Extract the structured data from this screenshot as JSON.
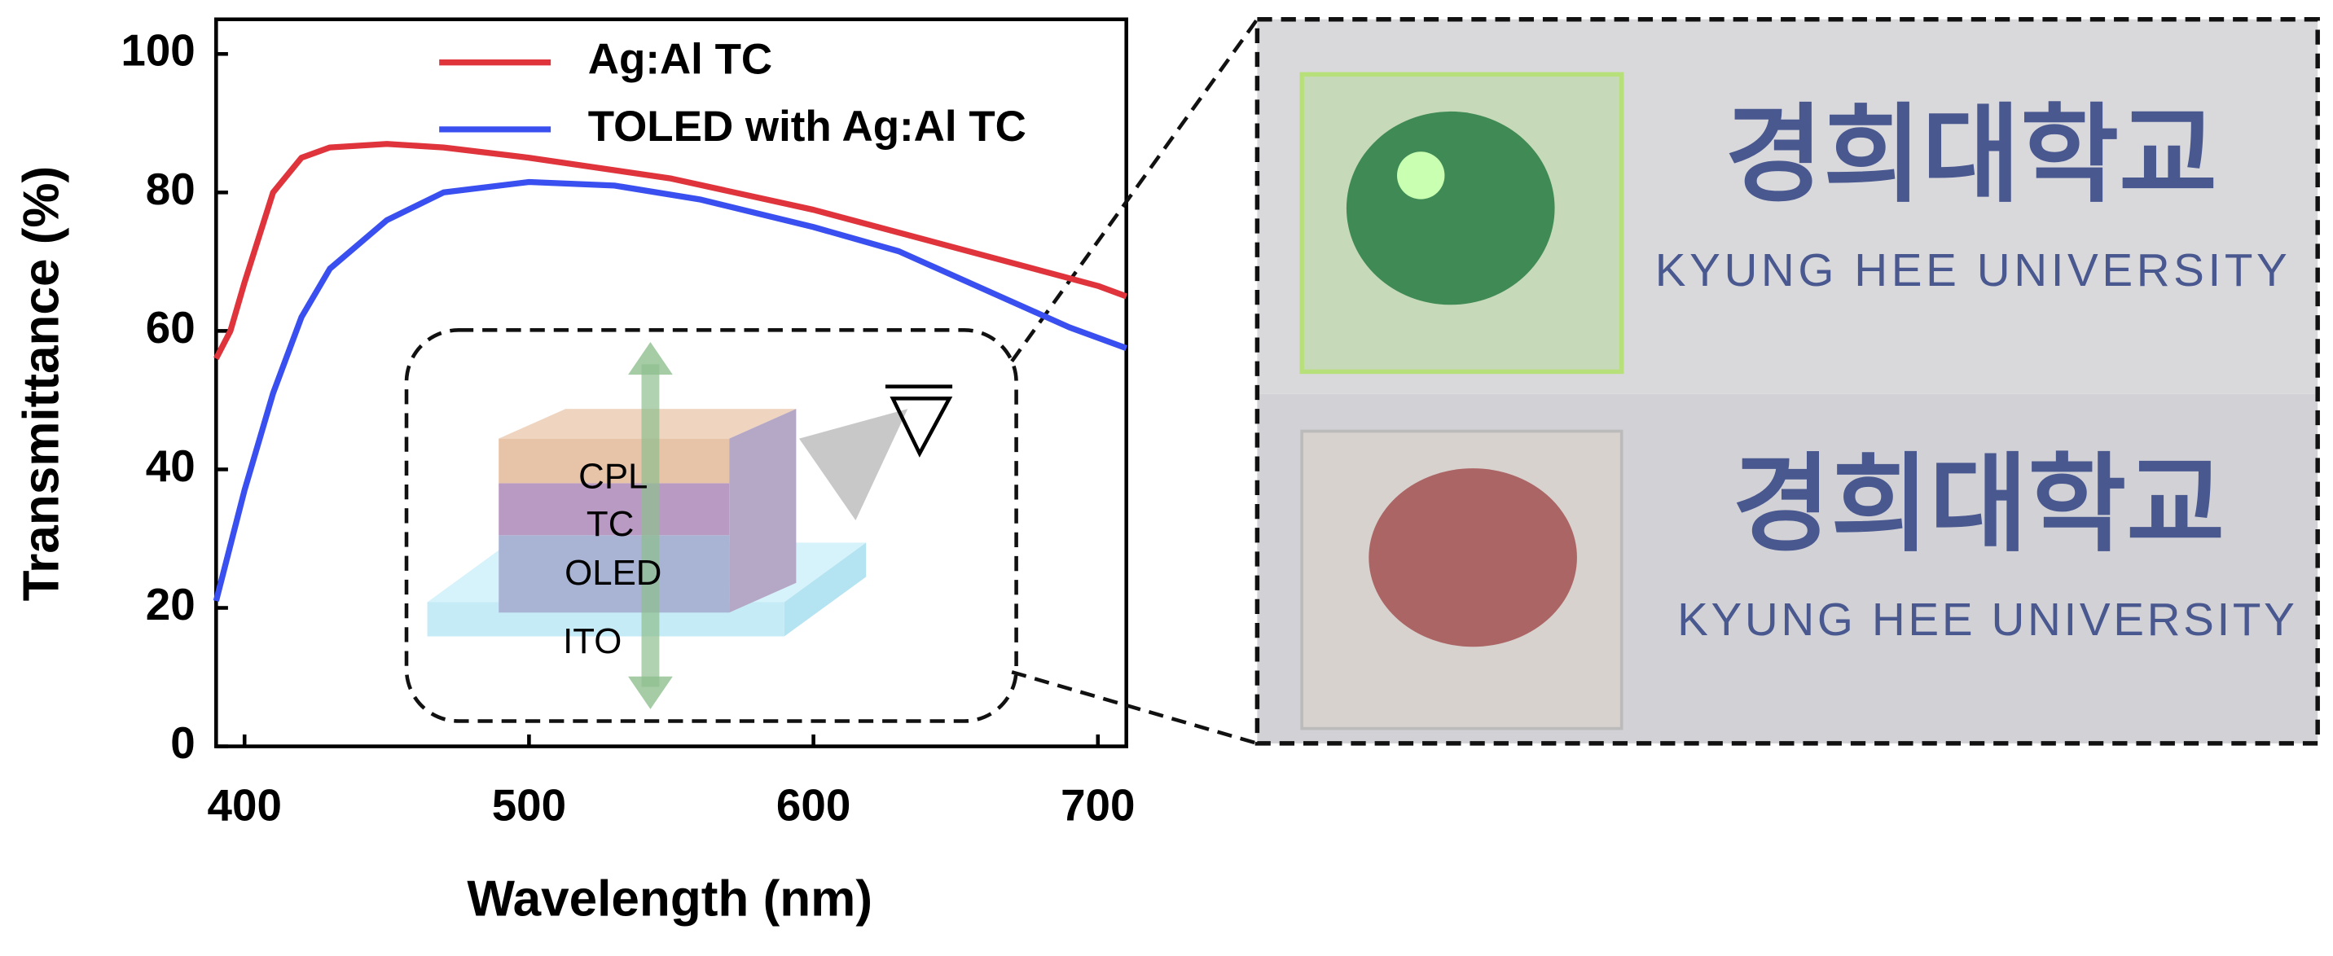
{
  "chart_data": {
    "type": "line",
    "x_label": "Wavelength (nm)",
    "y_label": "Transmittance (%)",
    "xlim": [
      390,
      710
    ],
    "ylim": [
      0,
      105
    ],
    "xticks": [
      400,
      500,
      600,
      700
    ],
    "yticks": [
      0,
      20,
      40,
      60,
      80,
      100
    ],
    "legend": "top",
    "series": [
      {
        "name": "Ag:Al TC",
        "color": "#e0343c",
        "x": [
          390,
          395,
          400,
          410,
          420,
          430,
          450,
          470,
          500,
          550,
          600,
          650,
          700,
          710
        ],
        "values": [
          56,
          60,
          67,
          80,
          85,
          86.5,
          87,
          86.5,
          85,
          82,
          77.5,
          72,
          66.5,
          65
        ]
      },
      {
        "name": "TOLED with Ag:Al TC",
        "color": "#3a4ff0",
        "x": [
          390,
          400,
          410,
          420,
          430,
          450,
          470,
          500,
          530,
          560,
          600,
          630,
          660,
          690,
          710
        ],
        "values": [
          21,
          37,
          51,
          62,
          69,
          76,
          80,
          81.5,
          81,
          79,
          75,
          71.5,
          66,
          60.5,
          57.5
        ]
      }
    ]
  },
  "inset_labels": [
    "CPL",
    "TC",
    "OLED",
    "ITO"
  ],
  "photo_labels": {
    "korean": "경희대학교",
    "english": "KYUNG HEE UNIVERSITY"
  }
}
